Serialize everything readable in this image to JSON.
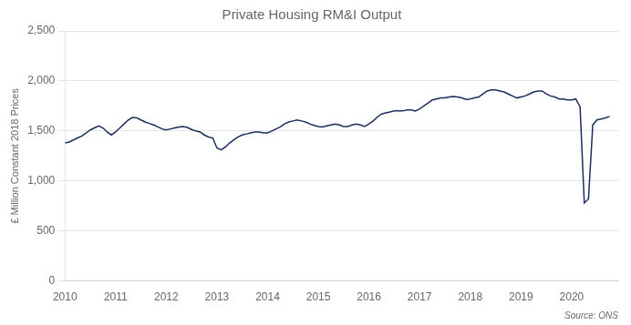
{
  "chart_data": {
    "type": "line",
    "title": "Private Housing RM&I Output",
    "ylabel": "£ Million Constant 2018 Prices",
    "annotation": "Source: ONS",
    "color": "#1a2e5a",
    "grid": "y",
    "x": [
      2010.0,
      2010.083,
      2010.167,
      2010.25,
      2010.333,
      2010.417,
      2010.5,
      2010.583,
      2010.667,
      2010.75,
      2010.833,
      2010.917,
      2011.0,
      2011.083,
      2011.167,
      2011.25,
      2011.333,
      2011.417,
      2011.5,
      2011.583,
      2011.667,
      2011.75,
      2011.833,
      2011.917,
      2012.0,
      2012.083,
      2012.167,
      2012.25,
      2012.333,
      2012.417,
      2012.5,
      2012.583,
      2012.667,
      2012.75,
      2012.833,
      2012.917,
      2013.0,
      2013.083,
      2013.167,
      2013.25,
      2013.333,
      2013.417,
      2013.5,
      2013.583,
      2013.667,
      2013.75,
      2013.833,
      2013.917,
      2014.0,
      2014.083,
      2014.167,
      2014.25,
      2014.333,
      2014.417,
      2014.5,
      2014.583,
      2014.667,
      2014.75,
      2014.833,
      2014.917,
      2015.0,
      2015.083,
      2015.167,
      2015.25,
      2015.333,
      2015.417,
      2015.5,
      2015.583,
      2015.667,
      2015.75,
      2015.833,
      2015.917,
      2016.0,
      2016.083,
      2016.167,
      2016.25,
      2016.333,
      2016.417,
      2016.5,
      2016.583,
      2016.667,
      2016.75,
      2016.833,
      2016.917,
      2017.0,
      2017.083,
      2017.167,
      2017.25,
      2017.333,
      2017.417,
      2017.5,
      2017.583,
      2017.667,
      2017.75,
      2017.833,
      2017.917,
      2018.0,
      2018.083,
      2018.167,
      2018.25,
      2018.333,
      2018.417,
      2018.5,
      2018.583,
      2018.667,
      2018.75,
      2018.833,
      2018.917,
      2019.0,
      2019.083,
      2019.167,
      2019.25,
      2019.333,
      2019.417,
      2019.5,
      2019.583,
      2019.667,
      2019.75,
      2019.833,
      2019.917,
      2020.0,
      2020.083,
      2020.167,
      2020.25,
      2020.333,
      2020.417,
      2020.5,
      2020.583,
      2020.667,
      2020.75
    ],
    "values": [
      1380,
      1390,
      1410,
      1430,
      1450,
      1480,
      1510,
      1530,
      1550,
      1530,
      1490,
      1460,
      1490,
      1530,
      1570,
      1610,
      1635,
      1630,
      1610,
      1590,
      1575,
      1560,
      1540,
      1520,
      1510,
      1520,
      1530,
      1540,
      1545,
      1535,
      1515,
      1500,
      1490,
      1460,
      1440,
      1430,
      1330,
      1310,
      1340,
      1380,
      1410,
      1440,
      1460,
      1470,
      1480,
      1490,
      1490,
      1480,
      1480,
      1500,
      1520,
      1540,
      1570,
      1590,
      1600,
      1610,
      1600,
      1590,
      1570,
      1555,
      1545,
      1540,
      1550,
      1560,
      1570,
      1560,
      1545,
      1545,
      1560,
      1570,
      1560,
      1545,
      1570,
      1600,
      1640,
      1670,
      1680,
      1690,
      1700,
      1700,
      1700,
      1710,
      1710,
      1700,
      1720,
      1750,
      1780,
      1810,
      1820,
      1830,
      1830,
      1840,
      1845,
      1840,
      1830,
      1815,
      1820,
      1830,
      1840,
      1870,
      1900,
      1910,
      1910,
      1900,
      1890,
      1870,
      1850,
      1830,
      1840,
      1850,
      1870,
      1890,
      1900,
      1900,
      1870,
      1850,
      1840,
      1820,
      1820,
      1810,
      1810,
      1820,
      1740,
      780,
      820,
      1560,
      1610,
      1620,
      1630,
      1645
    ],
    "xlim": [
      2010.0,
      2020.92
    ],
    "xticks": [
      2010,
      2011,
      2012,
      2013,
      2014,
      2015,
      2016,
      2017,
      2018,
      2019,
      2020
    ],
    "ylim": [
      0,
      2500
    ],
    "yticks": [
      0,
      500,
      {
        "value": 1000,
        "label": "1,000"
      },
      {
        "value": 1500,
        "label": "1,500"
      },
      {
        "value": 2000,
        "label": "2,000"
      },
      {
        "value": 2500,
        "label": "2,500"
      }
    ]
  }
}
